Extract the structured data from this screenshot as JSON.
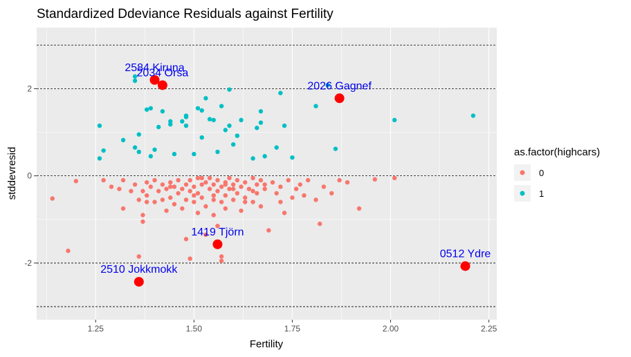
{
  "chart_data": {
    "type": "scatter",
    "title": "Standardized Ddeviance Residuals against Fertility",
    "xlabel": "Fertility",
    "ylabel": "stddevresid",
    "xlim": [
      1.1,
      2.27
    ],
    "ylim": [
      -3.3,
      3.4
    ],
    "xticks": [
      1.25,
      1.5,
      1.75,
      2.0,
      2.25
    ],
    "xtick_labels": [
      "1.25",
      "1.50",
      "1.75",
      "2.00",
      "2.25"
    ],
    "yticks": [
      -2,
      0,
      2
    ],
    "ytick_labels": [
      "-2",
      "0",
      "2"
    ],
    "hlines": [
      -3,
      -2,
      0,
      2,
      3
    ],
    "grid": true,
    "legend": {
      "title": "as.factor(highcars)",
      "position": "right",
      "entries": [
        {
          "label": "0",
          "color": "#F8766D"
        },
        {
          "label": "1",
          "color": "#00BFC4"
        }
      ]
    },
    "series": [
      {
        "name": "0",
        "color": "#F8766D",
        "points": [
          [
            1.14,
            -0.52
          ],
          [
            1.18,
            -1.72
          ],
          [
            1.2,
            -0.12
          ],
          [
            1.27,
            -0.1
          ],
          [
            1.29,
            -0.25
          ],
          [
            1.31,
            -0.3
          ],
          [
            1.32,
            -0.75
          ],
          [
            1.32,
            -0.1
          ],
          [
            1.34,
            -0.35
          ],
          [
            1.35,
            -0.2
          ],
          [
            1.36,
            -0.55
          ],
          [
            1.36,
            -1.85
          ],
          [
            1.37,
            -0.35
          ],
          [
            1.37,
            -0.9
          ],
          [
            1.37,
            -1.05
          ],
          [
            1.38,
            -0.15
          ],
          [
            1.38,
            -0.45
          ],
          [
            1.39,
            -0.25
          ],
          [
            1.4,
            -0.6
          ],
          [
            1.4,
            -0.1
          ],
          [
            1.41,
            -0.35
          ],
          [
            1.42,
            -0.2
          ],
          [
            1.42,
            -0.55
          ],
          [
            1.43,
            -0.8
          ],
          [
            1.43,
            -0.3
          ],
          [
            1.44,
            -0.15
          ],
          [
            1.44,
            -0.5
          ],
          [
            1.45,
            -0.25
          ],
          [
            1.45,
            -0.65
          ],
          [
            1.46,
            -0.1
          ],
          [
            1.46,
            -0.4
          ],
          [
            1.47,
            -0.3
          ],
          [
            1.47,
            -0.75
          ],
          [
            1.48,
            -0.2
          ],
          [
            1.48,
            -0.55
          ],
          [
            1.48,
            -1.45
          ],
          [
            1.49,
            -0.1
          ],
          [
            1.49,
            -0.35
          ],
          [
            1.49,
            -1.9
          ],
          [
            1.5,
            -0.25
          ],
          [
            1.5,
            -0.6
          ],
          [
            1.51,
            -0.05
          ],
          [
            1.51,
            -0.4
          ],
          [
            1.51,
            -0.85
          ],
          [
            1.52,
            -0.2
          ],
          [
            1.52,
            -0.5
          ],
          [
            1.53,
            -0.15
          ],
          [
            1.53,
            -0.7
          ],
          [
            1.53,
            -1.35
          ],
          [
            1.54,
            -0.3
          ],
          [
            1.54,
            -0.05
          ],
          [
            1.55,
            -0.45
          ],
          [
            1.55,
            -0.2
          ],
          [
            1.55,
            -0.9
          ],
          [
            1.56,
            -0.1
          ],
          [
            1.56,
            -0.35
          ],
          [
            1.56,
            -1.15
          ],
          [
            1.57,
            -0.25
          ],
          [
            1.57,
            -0.6
          ],
          [
            1.57,
            -1.85
          ],
          [
            1.57,
            -1.95
          ],
          [
            1.58,
            -0.15
          ],
          [
            1.58,
            -0.45
          ],
          [
            1.58,
            -0.75
          ],
          [
            1.59,
            -0.05
          ],
          [
            1.59,
            -0.3
          ],
          [
            1.6,
            -0.2
          ],
          [
            1.6,
            -0.55
          ],
          [
            1.61,
            -0.1
          ],
          [
            1.61,
            -0.4
          ],
          [
            1.62,
            -0.25
          ],
          [
            1.62,
            -0.8
          ],
          [
            1.63,
            -0.15
          ],
          [
            1.63,
            -0.5
          ],
          [
            1.64,
            -0.3
          ],
          [
            1.65,
            -0.05
          ],
          [
            1.65,
            -0.6
          ],
          [
            1.66,
            -0.2
          ],
          [
            1.66,
            -0.4
          ],
          [
            1.67,
            -0.1
          ],
          [
            1.67,
            -0.7
          ],
          [
            1.68,
            -0.3
          ],
          [
            1.68,
            -0.2
          ],
          [
            1.69,
            -1.25
          ],
          [
            1.7,
            -0.15
          ],
          [
            1.71,
            -0.4
          ],
          [
            1.72,
            -0.25
          ],
          [
            1.73,
            -0.85
          ],
          [
            1.74,
            -0.1
          ],
          [
            1.75,
            -0.5
          ],
          [
            1.76,
            -0.3
          ],
          [
            1.77,
            -0.2
          ],
          [
            1.78,
            -0.45
          ],
          [
            1.79,
            -0.1
          ],
          [
            1.81,
            -0.55
          ],
          [
            1.82,
            -1.1
          ],
          [
            1.83,
            -0.25
          ],
          [
            1.85,
            -0.4
          ],
          [
            1.87,
            -0.1
          ],
          [
            1.89,
            -0.15
          ],
          [
            1.92,
            -0.75
          ],
          [
            1.96,
            -0.08
          ],
          [
            2.01,
            -0.05
          ],
          [
            1.44,
            -0.25
          ],
          [
            1.38,
            -0.6
          ],
          [
            1.5,
            -0.45
          ],
          [
            1.55,
            -0.55
          ],
          [
            1.6,
            -0.3
          ],
          [
            1.65,
            -0.35
          ],
          [
            1.72,
            -0.6
          ],
          [
            1.52,
            -0.05
          ],
          [
            1.58,
            -0.2
          ],
          [
            1.63,
            -0.6
          ]
        ]
      },
      {
        "name": "1",
        "color": "#00BFC4",
        "points": [
          [
            1.26,
            1.15
          ],
          [
            1.26,
            0.4
          ],
          [
            1.27,
            0.58
          ],
          [
            1.32,
            0.82
          ],
          [
            1.35,
            2.28
          ],
          [
            1.35,
            2.18
          ],
          [
            1.35,
            0.65
          ],
          [
            1.36,
            0.95
          ],
          [
            1.36,
            0.55
          ],
          [
            1.38,
            1.52
          ],
          [
            1.39,
            1.55
          ],
          [
            1.39,
            0.45
          ],
          [
            1.4,
            0.6
          ],
          [
            1.41,
            1.12
          ],
          [
            1.42,
            1.48
          ],
          [
            1.44,
            1.25
          ],
          [
            1.44,
            1.18
          ],
          [
            1.45,
            0.5
          ],
          [
            1.47,
            1.25
          ],
          [
            1.48,
            1.38
          ],
          [
            1.48,
            1.35
          ],
          [
            1.48,
            1.15
          ],
          [
            1.5,
            0.5
          ],
          [
            1.51,
            1.55
          ],
          [
            1.52,
            1.5
          ],
          [
            1.52,
            0.88
          ],
          [
            1.53,
            1.78
          ],
          [
            1.54,
            1.3
          ],
          [
            1.55,
            1.28
          ],
          [
            1.56,
            0.55
          ],
          [
            1.57,
            1.6
          ],
          [
            1.58,
            1.05
          ],
          [
            1.59,
            1.98
          ],
          [
            1.59,
            1.15
          ],
          [
            1.6,
            0.72
          ],
          [
            1.61,
            0.92
          ],
          [
            1.62,
            1.28
          ],
          [
            1.65,
            0.4
          ],
          [
            1.66,
            1.1
          ],
          [
            1.67,
            1.22
          ],
          [
            1.67,
            1.48
          ],
          [
            1.68,
            0.45
          ],
          [
            1.71,
            0.65
          ],
          [
            1.72,
            1.9
          ],
          [
            1.73,
            1.15
          ],
          [
            1.75,
            0.42
          ],
          [
            1.81,
            1.6
          ],
          [
            1.84,
            2.08
          ],
          [
            1.86,
            0.62
          ],
          [
            2.01,
            1.28
          ],
          [
            2.21,
            1.38
          ]
        ]
      }
    ],
    "highlighted": [
      {
        "label": "2584 Kiruna",
        "x": 1.4,
        "y": 2.2
      },
      {
        "label": "2034 Orsa",
        "x": 1.42,
        "y": 2.08
      },
      {
        "label": "2026 Gagnef",
        "x": 1.87,
        "y": 1.78
      },
      {
        "label": "1419 Tjörn",
        "x": 1.56,
        "y": -1.57
      },
      {
        "label": "2510 Jokkmokk",
        "x": 1.36,
        "y": -2.43
      },
      {
        "label": "0512 Ydre",
        "x": 2.19,
        "y": -2.07
      }
    ],
    "highlight_color": "#FF0000",
    "annotation_color": "#0000EE"
  }
}
